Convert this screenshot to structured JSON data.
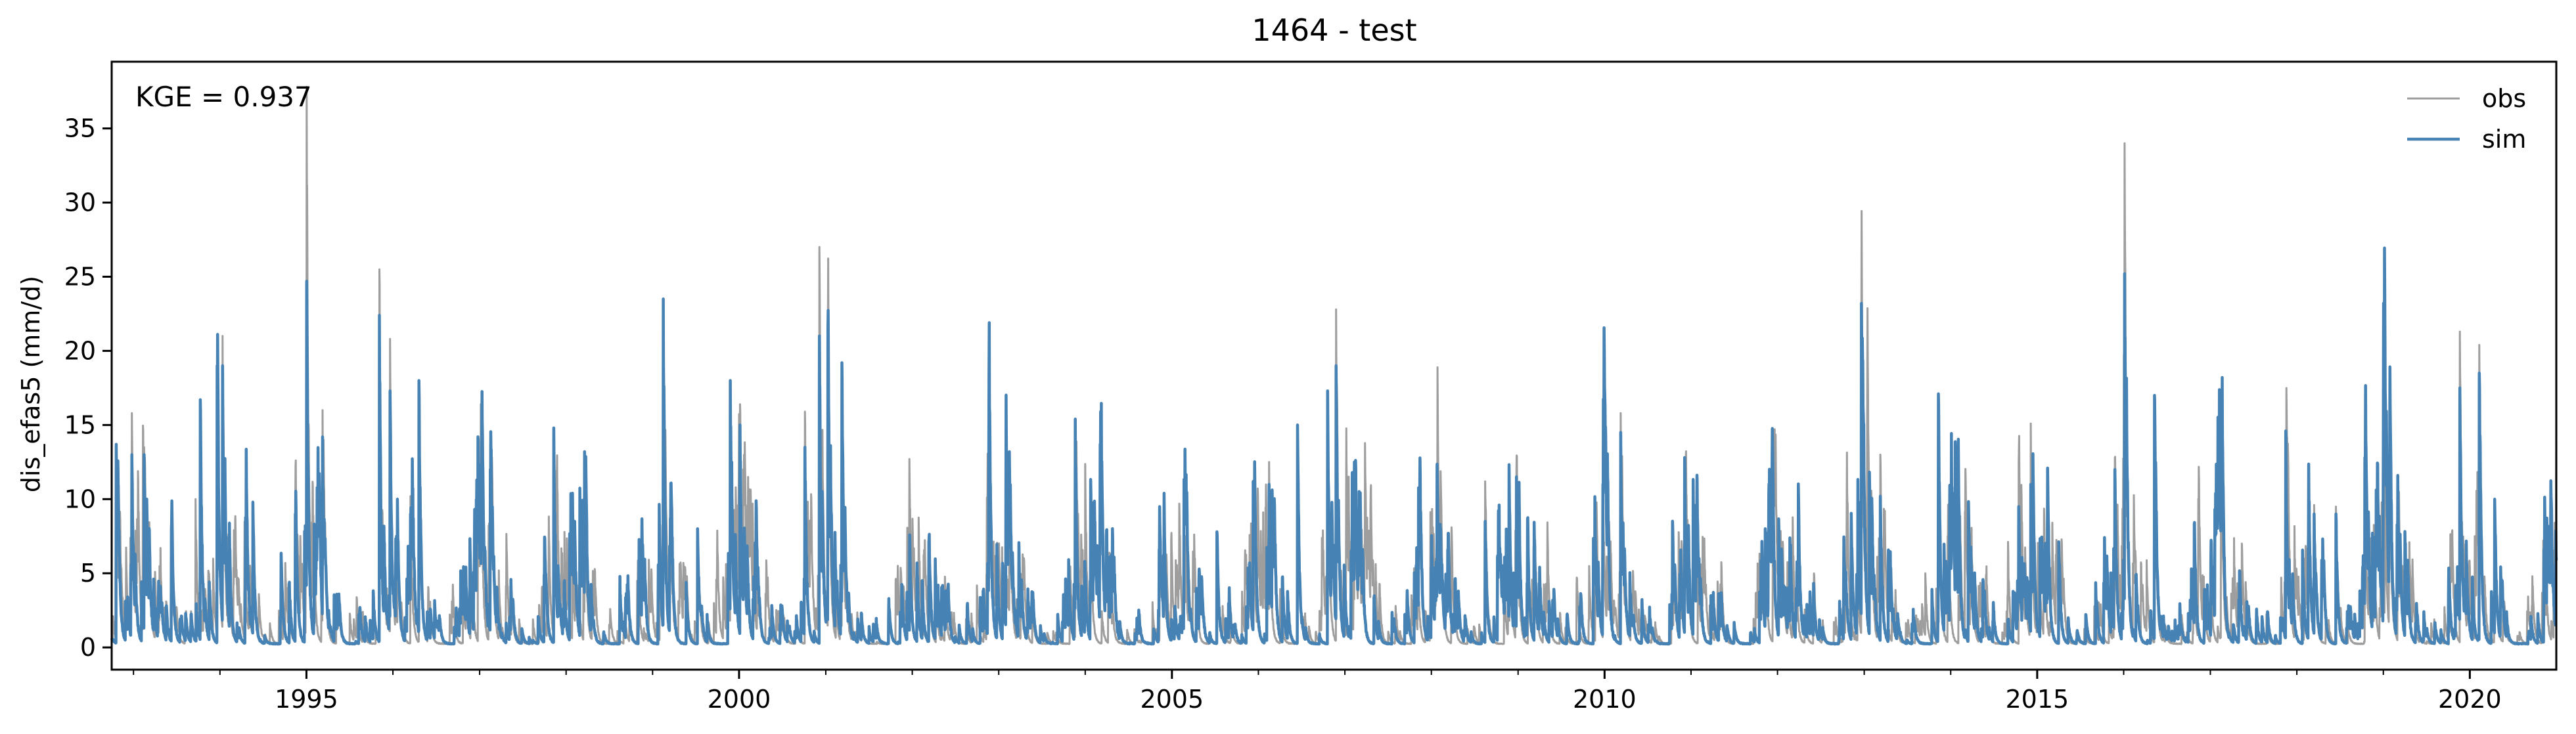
{
  "chart_data": {
    "type": "line",
    "title": "1464 - test",
    "xlabel": "",
    "ylabel": "dis_efas5 (mm/d)",
    "annotation": "KGE = 0.937",
    "xlim": [
      "1992-10-01",
      "2020-12-31"
    ],
    "ylim": [
      -1.5,
      39.5
    ],
    "x_ticks": [
      "1995",
      "2000",
      "2005",
      "2010",
      "2015",
      "2020"
    ],
    "y_ticks": [
      0,
      5,
      10,
      15,
      20,
      25,
      30,
      35
    ],
    "legend": {
      "position": "top-right",
      "entries": [
        "obs",
        "sim"
      ]
    },
    "grid": false,
    "colors": {
      "obs": "#9e9e9e",
      "sim": "#4682b4"
    },
    "series": [
      {
        "name": "obs",
        "peaks": [
          [
            "1992-10-20",
            13.7
          ],
          [
            "1992-12-25",
            15.8
          ],
          [
            "1993-02-15",
            13.5
          ],
          [
            "1993-06-10",
            8.0
          ],
          [
            "1993-09-20",
            10.0
          ],
          [
            "1993-12-20",
            20.3
          ],
          [
            "1994-01-12",
            21.0
          ],
          [
            "1994-05-20",
            9.8
          ],
          [
            "1994-11-15",
            10.0
          ],
          [
            "1995-01-02",
            37.8
          ],
          [
            "1995-03-10",
            16.0
          ],
          [
            "1995-11-05",
            25.5
          ],
          [
            "1995-12-20",
            20.8
          ],
          [
            "1996-01-20",
            10.0
          ],
          [
            "1996-03-15",
            10.2
          ],
          [
            "1996-04-20",
            18.0
          ],
          [
            "1996-12-25",
            14.2
          ],
          [
            "1997-02-15",
            13.7
          ],
          [
            "1997-11-10",
            14.8
          ],
          [
            "1998-03-20",
            13.2
          ],
          [
            "1999-02-15",
            23.5
          ],
          [
            "1999-07-10",
            8.0
          ],
          [
            "1999-11-25",
            18.0
          ],
          [
            "2000-01-05",
            16.4
          ],
          [
            "2000-10-05",
            15.9
          ],
          [
            "2000-12-05",
            27.0
          ],
          [
            "2001-01-10",
            21.5
          ],
          [
            "2001-03-10",
            19.2
          ],
          [
            "2002-11-20",
            13.3
          ],
          [
            "2003-02-15",
            13.2
          ],
          [
            "2003-11-20",
            15.4
          ],
          [
            "2004-11-10",
            9.5
          ],
          [
            "2005-02-20",
            4.5
          ],
          [
            "2005-07-10",
            7.8
          ],
          [
            "2005-12-10",
            11.2
          ],
          [
            "2006-02-15",
            12.5
          ],
          [
            "2006-06-15",
            15.0
          ],
          [
            "2006-10-20",
            17.3
          ],
          [
            "2006-11-25",
            22.8
          ],
          [
            "2007-02-10",
            12.5
          ],
          [
            "2008-08-15",
            11.2
          ],
          [
            "2008-12-25",
            12.0
          ],
          [
            "2009-12-25",
            12.0
          ],
          [
            "2010-03-10",
            15.8
          ],
          [
            "2010-12-05",
            12.8
          ],
          [
            "2011-11-10",
            8.0
          ],
          [
            "2012-03-20",
            5.1
          ],
          [
            "2012-12-20",
            23.4
          ],
          [
            "2013-03-10",
            13.0
          ],
          [
            "2013-11-10",
            17.1
          ],
          [
            "2014-10-15",
            12.5
          ],
          [
            "2014-12-05",
            15.1
          ],
          [
            "2015-11-25",
            12.8
          ],
          [
            "2016-01-05",
            34.0
          ],
          [
            "2016-05-10",
            17.0
          ],
          [
            "2017-02-15",
            17.0
          ],
          [
            "2017-11-15",
            14.6
          ],
          [
            "2018-03-15",
            9.6
          ],
          [
            "2018-06-15",
            9.5
          ],
          [
            "2018-10-15",
            12.8
          ],
          [
            "2019-01-25",
            11.6
          ],
          [
            "2019-11-20",
            21.3
          ],
          [
            "2020-02-10",
            20.4
          ],
          [
            "2020-04-15",
            10.0
          ],
          [
            "2020-11-20",
            3.0
          ]
        ]
      },
      {
        "name": "sim",
        "peaks": [
          [
            "1992-10-20",
            13.7
          ],
          [
            "1992-12-25",
            13.0
          ],
          [
            "1993-02-15",
            13.0
          ],
          [
            "1993-06-10",
            8.0
          ],
          [
            "1993-10-10",
            16.7
          ],
          [
            "1993-12-20",
            19.0
          ],
          [
            "1994-01-12",
            19.0
          ],
          [
            "1994-05-20",
            9.8
          ],
          [
            "1994-11-15",
            9.0
          ],
          [
            "1995-01-02",
            24.7
          ],
          [
            "1995-03-10",
            14.2
          ],
          [
            "1995-11-05",
            22.4
          ],
          [
            "1995-12-20",
            17.3
          ],
          [
            "1996-01-20",
            10.0
          ],
          [
            "1996-03-15",
            9.0
          ],
          [
            "1996-04-20",
            18.0
          ],
          [
            "1996-12-25",
            14.2
          ],
          [
            "1997-02-15",
            12.0
          ],
          [
            "1997-11-10",
            14.8
          ],
          [
            "1998-03-20",
            13.2
          ],
          [
            "1999-02-15",
            23.5
          ],
          [
            "1999-07-10",
            8.0
          ],
          [
            "1999-11-25",
            18.0
          ],
          [
            "2000-01-05",
            15.0
          ],
          [
            "2000-10-05",
            13.5
          ],
          [
            "2000-12-05",
            21.0
          ],
          [
            "2001-01-10",
            21.5
          ],
          [
            "2001-03-10",
            19.2
          ],
          [
            "2002-11-20",
            13.3
          ],
          [
            "2003-02-15",
            13.2
          ],
          [
            "2003-11-20",
            15.4
          ],
          [
            "2004-11-10",
            9.5
          ],
          [
            "2005-02-20",
            3.5
          ],
          [
            "2005-07-10",
            7.8
          ],
          [
            "2005-12-10",
            11.2
          ],
          [
            "2006-02-15",
            11.0
          ],
          [
            "2006-06-15",
            15.0
          ],
          [
            "2006-10-20",
            17.3
          ],
          [
            "2006-11-25",
            19.0
          ],
          [
            "2007-02-10",
            12.5
          ],
          [
            "2008-08-15",
            8.5
          ],
          [
            "2008-12-25",
            11.5
          ],
          [
            "2009-12-25",
            11.0
          ],
          [
            "2010-03-10",
            14.5
          ],
          [
            "2010-12-05",
            12.8
          ],
          [
            "2011-11-10",
            8.0
          ],
          [
            "2012-03-20",
            4.0
          ],
          [
            "2012-12-20",
            23.2
          ],
          [
            "2013-03-10",
            10.2
          ],
          [
            "2013-11-10",
            17.1
          ],
          [
            "2014-10-15",
            9.5
          ],
          [
            "2014-12-05",
            11.0
          ],
          [
            "2015-11-25",
            12.0
          ],
          [
            "2016-01-05",
            25.2
          ],
          [
            "2016-05-10",
            17.0
          ],
          [
            "2017-02-15",
            15.5
          ],
          [
            "2017-11-15",
            14.6
          ],
          [
            "2018-03-15",
            9.0
          ],
          [
            "2018-06-15",
            9.0
          ],
          [
            "2018-10-15",
            12.8
          ],
          [
            "2019-01-25",
            11.6
          ],
          [
            "2019-11-20",
            17.5
          ],
          [
            "2020-02-10",
            18.5
          ],
          [
            "2020-04-15",
            10.0
          ],
          [
            "2020-11-20",
            3.0
          ]
        ]
      }
    ]
  }
}
